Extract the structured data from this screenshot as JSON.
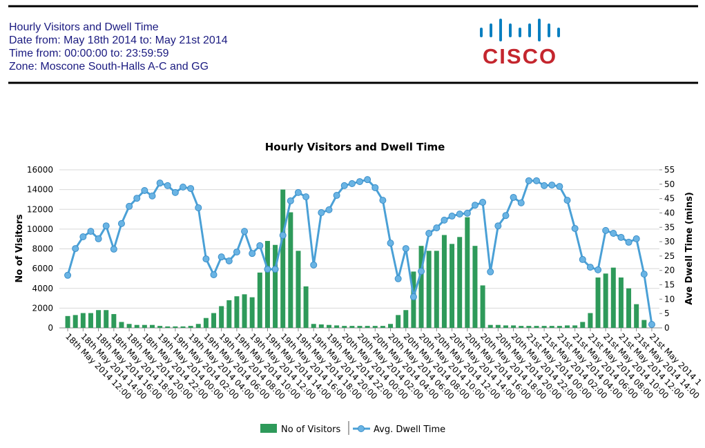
{
  "header": {
    "lines": [
      "Hourly Visitors and Dwell Time",
      "Date from: May 18th 2014 to: May 21st 2014",
      "Time from: 00:00:00 to: 23:59:59",
      "Zone: Moscone South-Halls A-C and GG"
    ]
  },
  "logo": {
    "text": "CISCO"
  },
  "chart_data": {
    "type": "bar",
    "title": "Hourly Visitors and Dwell Time",
    "y_label": "No of Visitors",
    "y2_label": "Ave Dwell Time (mins)",
    "categories": [
      "18th May 2014 12:00",
      null,
      "18th May 2014 14:00",
      null,
      "18th May 2014 16:00",
      null,
      "18th May 2014 18:00",
      null,
      "18th May 2014 20:00",
      null,
      "18th May 2014 22:00",
      null,
      "19th May 2014 00:00",
      null,
      "19th May 2014 02:00",
      null,
      "19th May 2014 04:00",
      null,
      "19th May 2014 06:00",
      null,
      "19th May 2014 08:00",
      null,
      "19th May 2014 10:00",
      null,
      "19th May 2014 12:00",
      null,
      "19th May 2014 14:00",
      null,
      "19th May 2014 16:00",
      null,
      "19th May 2014 18:00",
      null,
      "19th May 2014 20:00",
      null,
      "19th May 2014 22:00",
      null,
      "20th May 2014 00:00",
      null,
      "20th May 2014 02:00",
      null,
      "20th May 2014 04:00",
      null,
      "20th May 2014 06:00",
      null,
      "20th May 2014 08:00",
      null,
      "20th May 2014 10:00",
      null,
      "20th May 2014 12:00",
      null,
      "20th May 2014 14:00",
      null,
      "20th May 2014 16:00",
      null,
      "20th May 2014 18:00",
      null,
      "20th May 2014 20:00",
      null,
      "20th May 2014 22:00",
      null,
      "21st May 2014 00:00",
      null,
      "21st May 2014 02:00",
      null,
      "21st May 2014 04:00",
      null,
      "21st May 2014 06:00",
      null,
      "21st May 2014 08:00",
      null,
      "21st May 2014 10:00",
      null,
      "21st May 2014 12:00",
      null,
      "21st May 2014 14:00",
      null,
      "21st May 2014 1"
    ],
    "series": [
      {
        "name": "No of Visitors",
        "type": "bar",
        "color": "#2e9a5a",
        "values": [
          1200,
          1300,
          1500,
          1500,
          1800,
          1800,
          1400,
          600,
          400,
          300,
          300,
          300,
          200,
          150,
          150,
          150,
          200,
          400,
          1000,
          1500,
          2200,
          2800,
          3200,
          3400,
          3100,
          5600,
          8800,
          8400,
          14000,
          11700,
          7800,
          4200,
          400,
          350,
          300,
          250,
          200,
          200,
          200,
          200,
          200,
          200,
          400,
          1300,
          1800,
          5700,
          8300,
          7800,
          7800,
          9400,
          8500,
          9200,
          11200,
          8300,
          4300,
          300,
          300,
          250,
          250,
          200,
          200,
          200,
          200,
          200,
          200,
          250,
          250,
          600,
          1500,
          5100,
          5500,
          6100,
          5100,
          4000,
          2400,
          800,
          0
        ]
      },
      {
        "name": "Avg. Dwell Time",
        "type": "line",
        "axis": "y2",
        "color": "#4aa0d6",
        "values": [
          18.3,
          27.6,
          31.7,
          33.6,
          31.0,
          35.5,
          27.4,
          36.3,
          42.3,
          45.1,
          47.8,
          45.9,
          50.4,
          49.5,
          47.1,
          49.0,
          48.5,
          41.8,
          24.0,
          18.5,
          24.7,
          23.3,
          26.4,
          33.6,
          25.9,
          28.6,
          20.4,
          20.4,
          32.2,
          44.2,
          47.1,
          45.6,
          21.9,
          40.1,
          41.1,
          46.1,
          49.5,
          50.2,
          50.9,
          51.6,
          48.8,
          44.4,
          29.5,
          17.1,
          27.6,
          10.8,
          19.7,
          32.9,
          34.8,
          37.5,
          38.9,
          39.6,
          39.9,
          42.7,
          43.7,
          19.5,
          35.5,
          39.1,
          45.4,
          43.5,
          51.2,
          51.2,
          49.5,
          49.7,
          49.2,
          44.4,
          34.6,
          23.8,
          21.1,
          20.2,
          33.9,
          32.9,
          31.5,
          29.8,
          31.0,
          18.7,
          1.2
        ]
      }
    ],
    "ylim": [
      0,
      16000
    ],
    "yticks": [
      0,
      2000,
      4000,
      6000,
      8000,
      10000,
      12000,
      14000,
      16000
    ],
    "y2lim": [
      0,
      55
    ],
    "y2ticks": [
      0,
      5,
      10,
      15,
      20,
      25,
      30,
      35,
      40,
      45,
      50,
      55
    ],
    "grid": true,
    "legend": "bottom"
  }
}
